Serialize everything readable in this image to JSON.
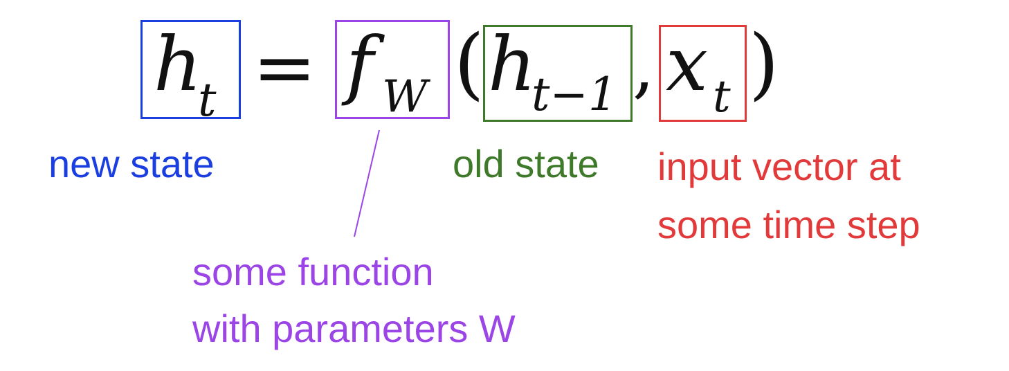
{
  "equation": {
    "lhs_symbol": "h",
    "lhs_subscript": "t",
    "equals": "=",
    "function_symbol": "f",
    "function_subscript": "W",
    "open_paren": "(",
    "arg1_symbol": "h",
    "arg1_subscript": "t−1",
    "comma": ",",
    "arg2_symbol": "x",
    "arg2_subscript": "t",
    "close_paren": ")"
  },
  "annotations": {
    "new_state": "new state",
    "function_line1": "some function",
    "function_line2": "with parameters W",
    "old_state": "old state",
    "input_line1": "input vector at",
    "input_line2": "some time step"
  },
  "colors": {
    "new_state": "#1a3ee0",
    "function": "#9b45e6",
    "old_state": "#3f7a2a",
    "input": "#e23a3a",
    "math": "#111111"
  }
}
